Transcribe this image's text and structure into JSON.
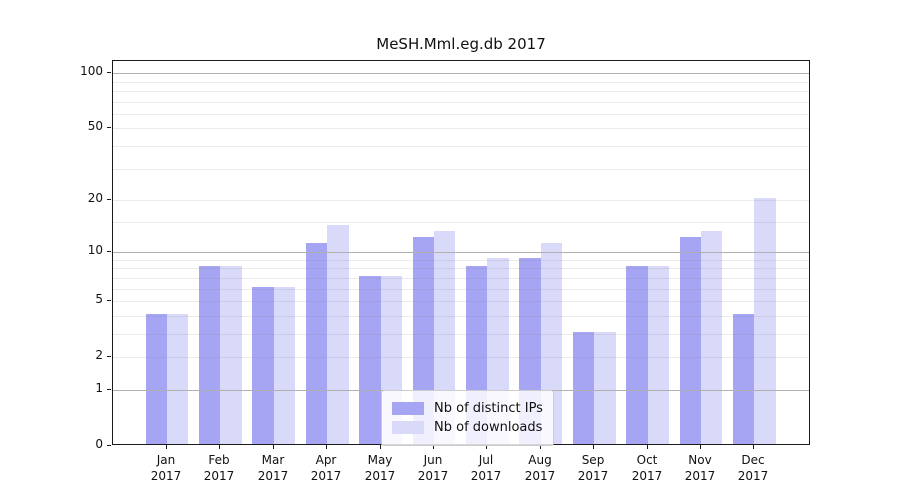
{
  "chart_data": {
    "type": "bar",
    "title": "MeSH.Mml.eg.db 2017",
    "categories": [
      "Jan",
      "Feb",
      "Mar",
      "Apr",
      "May",
      "Jun",
      "Jul",
      "Aug",
      "Sep",
      "Oct",
      "Nov",
      "Dec"
    ],
    "year_label": "2017",
    "series": [
      {
        "name": "Nb of distinct IPs",
        "color": "#a5a5f4",
        "values": [
          4,
          8,
          6,
          11,
          7,
          12,
          8,
          9,
          3,
          8,
          12,
          4
        ]
      },
      {
        "name": "Nb of downloads",
        "color": "#d9d9fa",
        "values": [
          4,
          8,
          6,
          14,
          7,
          13,
          9,
          11,
          3,
          8,
          13,
          20
        ]
      }
    ],
    "xlabel": "",
    "ylabel": "",
    "yscale": "log1p",
    "ylim": [
      0,
      118
    ],
    "ytick_labels": [
      0,
      1,
      2,
      5,
      10,
      20,
      50,
      100
    ],
    "major_gridlines": [
      1,
      10,
      100
    ],
    "minor_gridlines": [
      2,
      3,
      4,
      5,
      6,
      7,
      8,
      9,
      15,
      20,
      30,
      40,
      50,
      60,
      70,
      80,
      90
    ],
    "grid": "on",
    "legend_position": "bottom-center",
    "colors": {
      "spine": "#1a1a1a",
      "major_grid": "#b0b0b0",
      "background": "#ffffff"
    }
  }
}
